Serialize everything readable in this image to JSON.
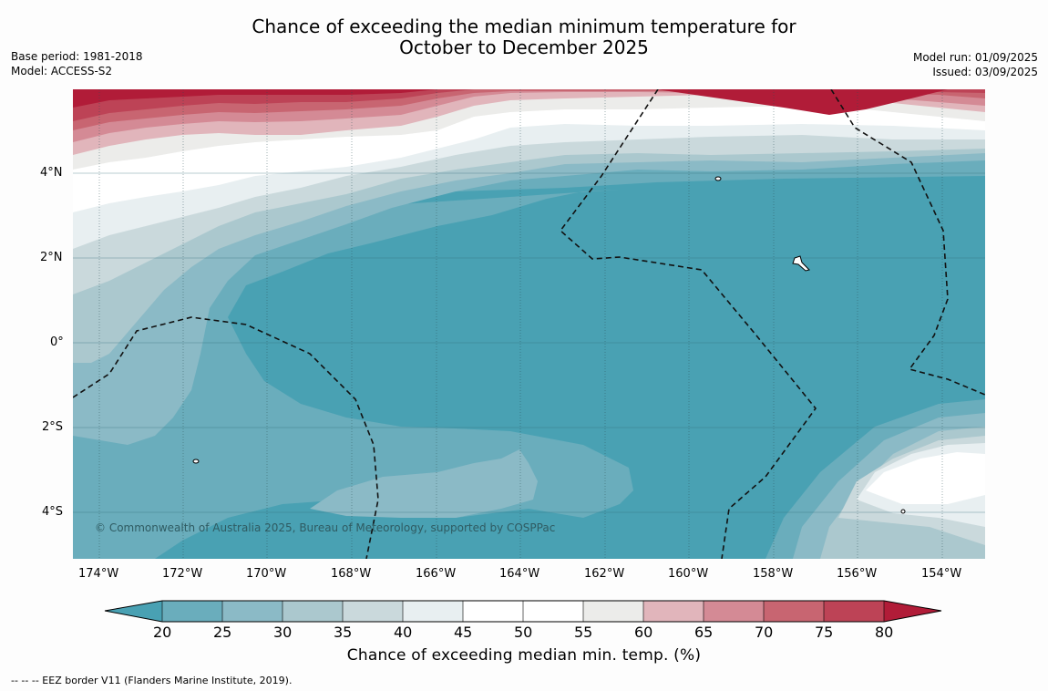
{
  "title": {
    "line1": "Chance of exceeding the median minimum temperature for",
    "line2": "October to December 2025"
  },
  "meta": {
    "base_period": "Base period: 1981-2018",
    "model": "Model: ACCESS-S2",
    "model_run": "Model run: 01/09/2025",
    "issued": "Issued: 03/09/2025"
  },
  "map": {
    "lat_labels": [
      "4°N",
      "2°N",
      "0°",
      "2°S",
      "4°S"
    ],
    "lon_labels": [
      "174°W",
      "172°W",
      "170°W",
      "168°W",
      "166°W",
      "164°W",
      "162°W",
      "160°W",
      "158°W",
      "156°W",
      "154°W"
    ],
    "copyright": "© Commonwealth of Australia 2025, Bureau of Meteorology, supported by COSPPac"
  },
  "colorbar": {
    "ticks": [
      "20",
      "25",
      "30",
      "35",
      "40",
      "45",
      "50",
      "55",
      "60",
      "65",
      "70",
      "75",
      "80"
    ],
    "colors": {
      "below_20": "#49a1b3",
      "20_25": "#6aadbc",
      "25_30": "#8bbac6",
      "30_35": "#abc8ce",
      "35_40": "#cad9dc",
      "40_45": "#e8eff1",
      "45_50": "#ffffff",
      "50_55": "#ffffff",
      "55_60": "#ececea",
      "60_65": "#e1b5bb",
      "65_70": "#d48a95",
      "70_75": "#c86571",
      "75_80": "#bd4356",
      "above_80": "#b11c38"
    },
    "label": "Chance of exceeding median min. temp. (%)"
  },
  "footer": "--  --  -- EEZ border V11 (Flanders Marine Institute, 2019)."
}
